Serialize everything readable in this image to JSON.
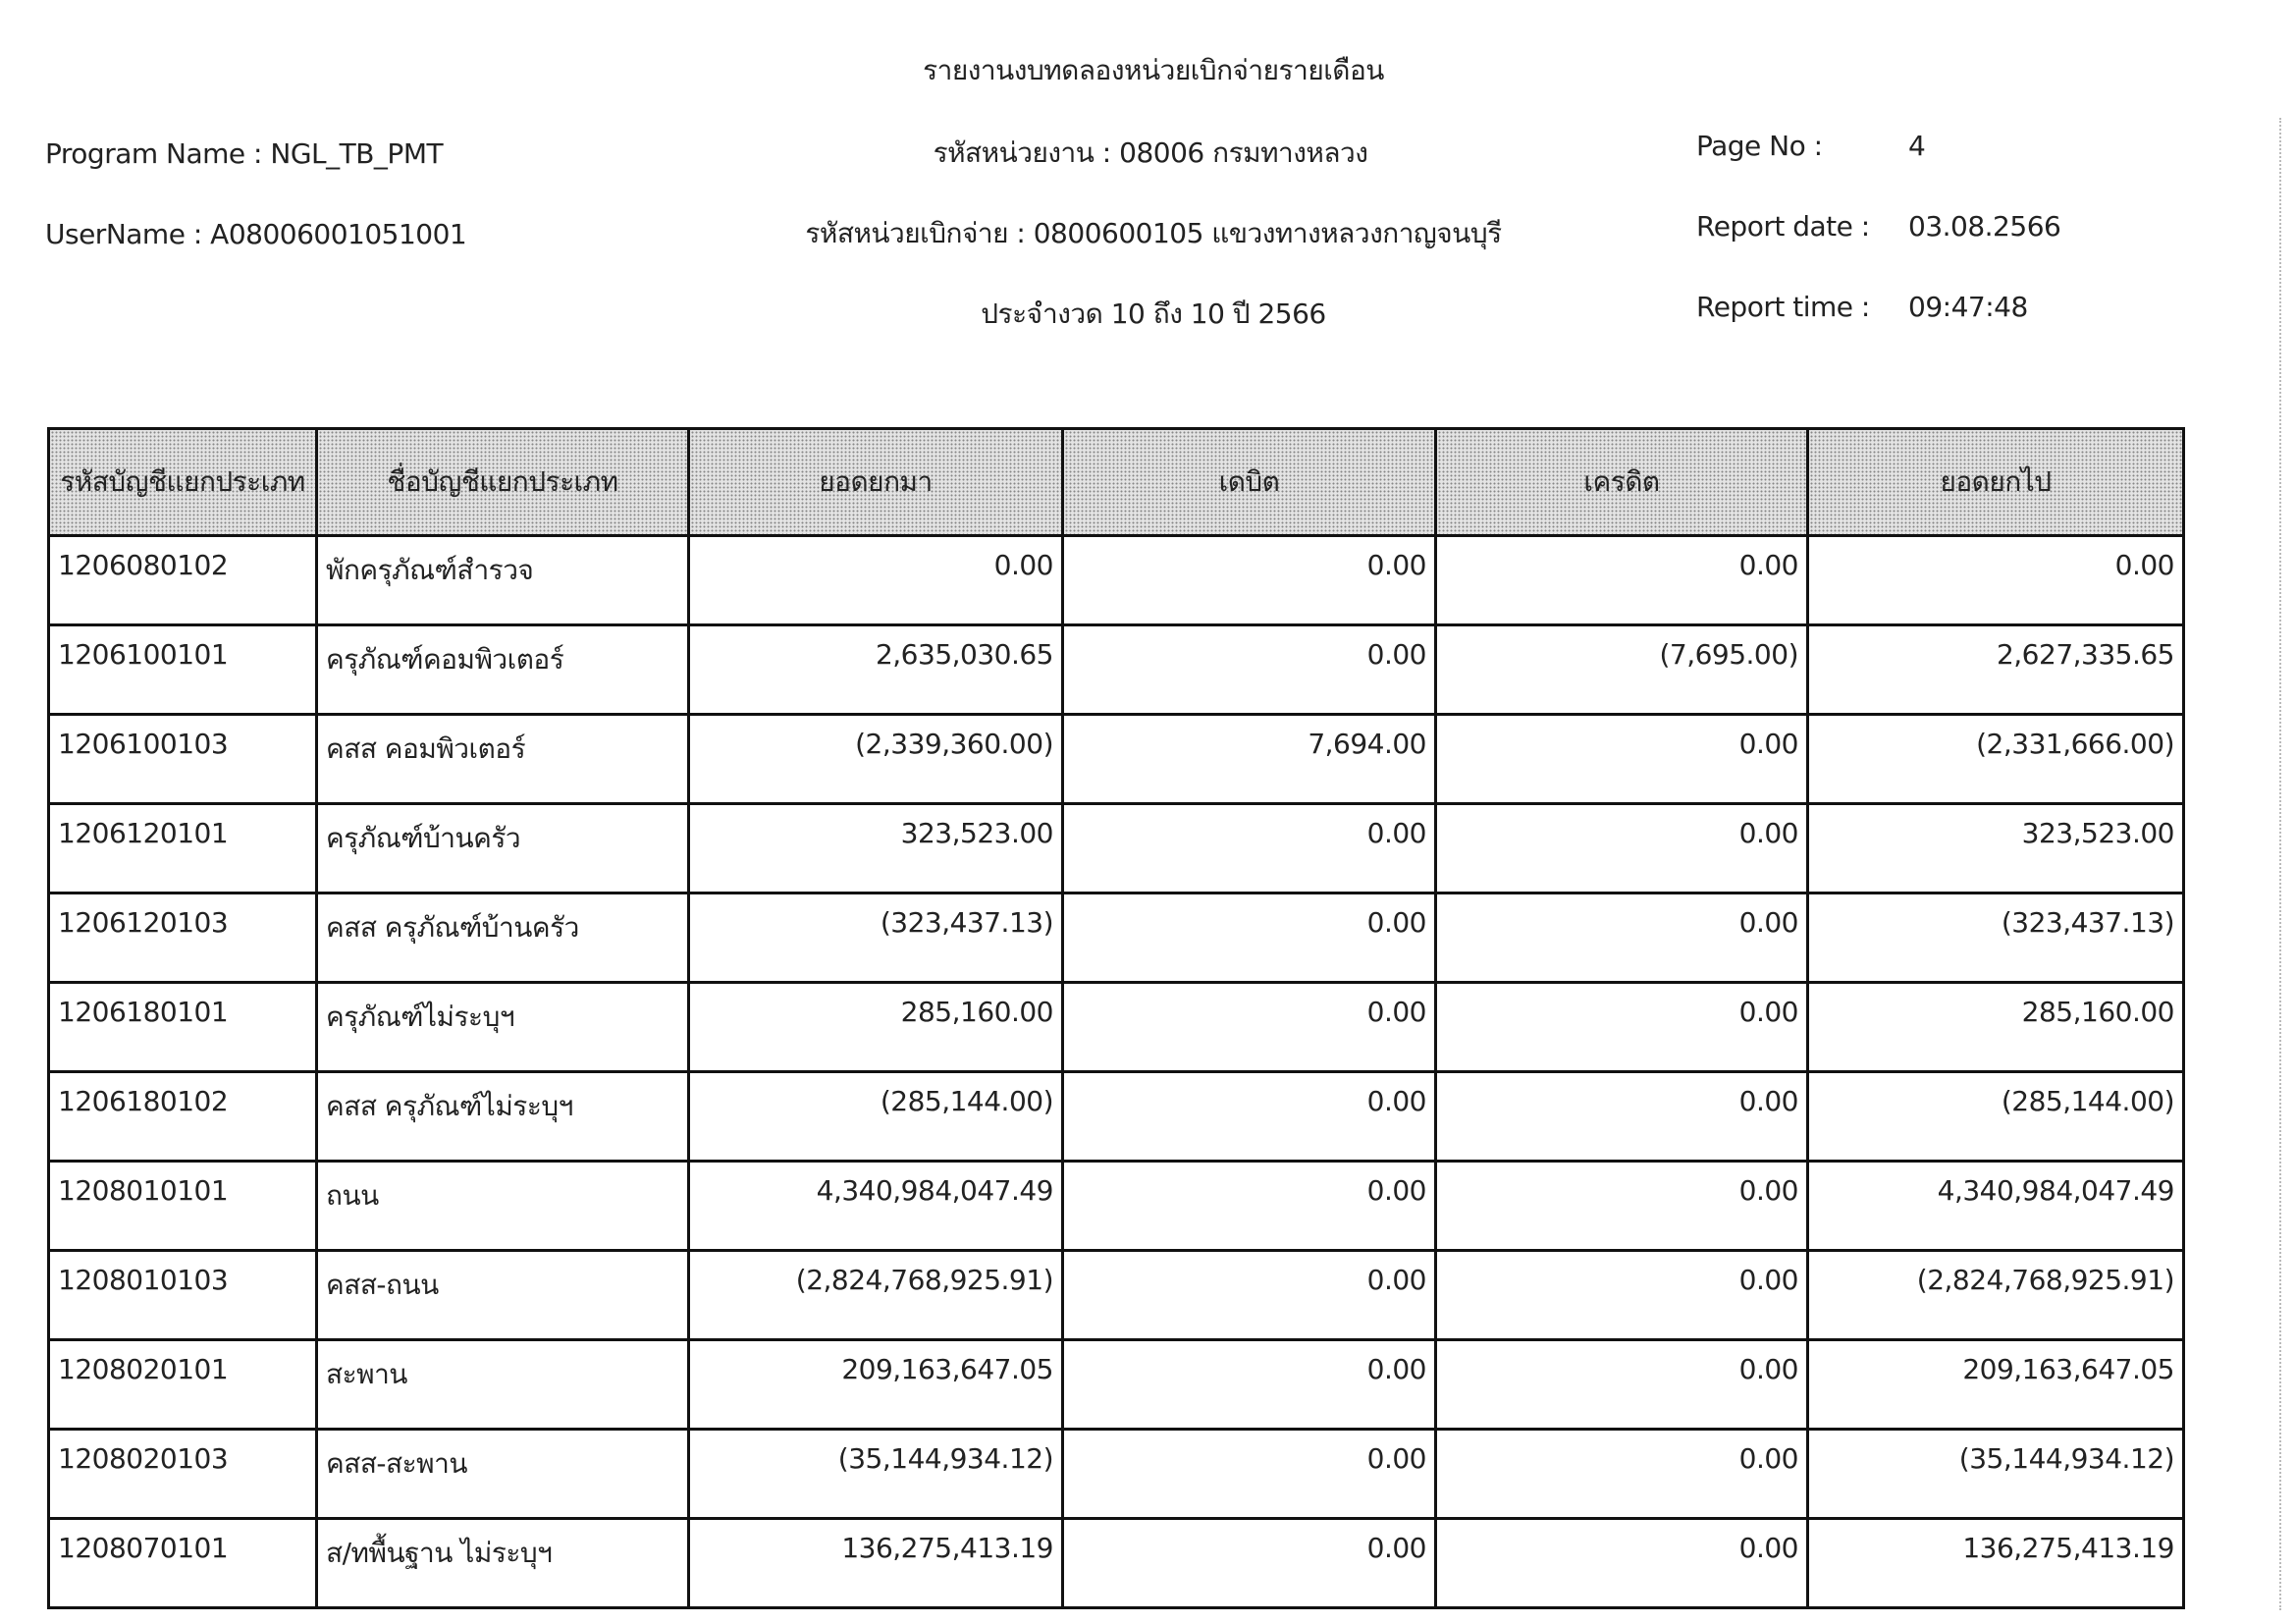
{
  "report": {
    "title": "รายงานงบทดลองหน่วยเบิกจ่ายรายเดือน",
    "program_name": "Program Name : NGL_TB_PMT",
    "user_name": "UserName : A08006001051001",
    "agency": "รหัสหน่วยงาน : 08006 กรมทางหลวง",
    "disbursing_unit": "รหัสหน่วยเบิกจ่าย : 0800600105 แขวงทางหลวงกาญจนบุรี",
    "period": "ประจำงวด 10 ถึง 10 ปี 2566",
    "page_no_label": "Page No :",
    "page_no": "4",
    "report_date_label": "Report date :",
    "report_date": "03.08.2566",
    "report_time_label": "Report time :",
    "report_time": "09:47:48"
  },
  "table": {
    "headers": [
      "รหัสบัญชีแยกประเภท",
      "ชื่อบัญชีแยกประเภท",
      "ยอดยกมา",
      "เดบิต",
      "เครดิต",
      "ยอดยกไป"
    ],
    "rows": [
      [
        "1206080102",
        "พักครุภัณฑ์สำรวจ",
        "0.00",
        "0.00",
        "0.00",
        "0.00"
      ],
      [
        "1206100101",
        "ครุภัณฑ์คอมพิวเตอร์",
        "2,635,030.65",
        "0.00",
        "(7,695.00)",
        "2,627,335.65"
      ],
      [
        "1206100103",
        "คสส คอมพิวเตอร์",
        "(2,339,360.00)",
        "7,694.00",
        "0.00",
        "(2,331,666.00)"
      ],
      [
        "1206120101",
        "ครุภัณฑ์บ้านครัว",
        "323,523.00",
        "0.00",
        "0.00",
        "323,523.00"
      ],
      [
        "1206120103",
        "คสส ครุภัณฑ์บ้านครัว",
        "(323,437.13)",
        "0.00",
        "0.00",
        "(323,437.13)"
      ],
      [
        "1206180101",
        "ครุภัณฑ์ไม่ระบุฯ",
        "285,160.00",
        "0.00",
        "0.00",
        "285,160.00"
      ],
      [
        "1206180102",
        "คสส ครุภัณฑ์ไม่ระบุฯ",
        "(285,144.00)",
        "0.00",
        "0.00",
        "(285,144.00)"
      ],
      [
        "1208010101",
        "ถนน",
        "4,340,984,047.49",
        "0.00",
        "0.00",
        "4,340,984,047.49"
      ],
      [
        "1208010103",
        "คสส-ถนน",
        "(2,824,768,925.91)",
        "0.00",
        "0.00",
        "(2,824,768,925.91)"
      ],
      [
        "1208020101",
        "สะพาน",
        "209,163,647.05",
        "0.00",
        "0.00",
        "209,163,647.05"
      ],
      [
        "1208020103",
        "คสส-สะพาน",
        "(35,144,934.12)",
        "0.00",
        "0.00",
        "(35,144,934.12)"
      ],
      [
        "1208070101",
        "ส/ทพื้นฐาน ไม่ระบุฯ",
        "136,275,413.19",
        "0.00",
        "0.00",
        "136,275,413.19"
      ]
    ]
  }
}
